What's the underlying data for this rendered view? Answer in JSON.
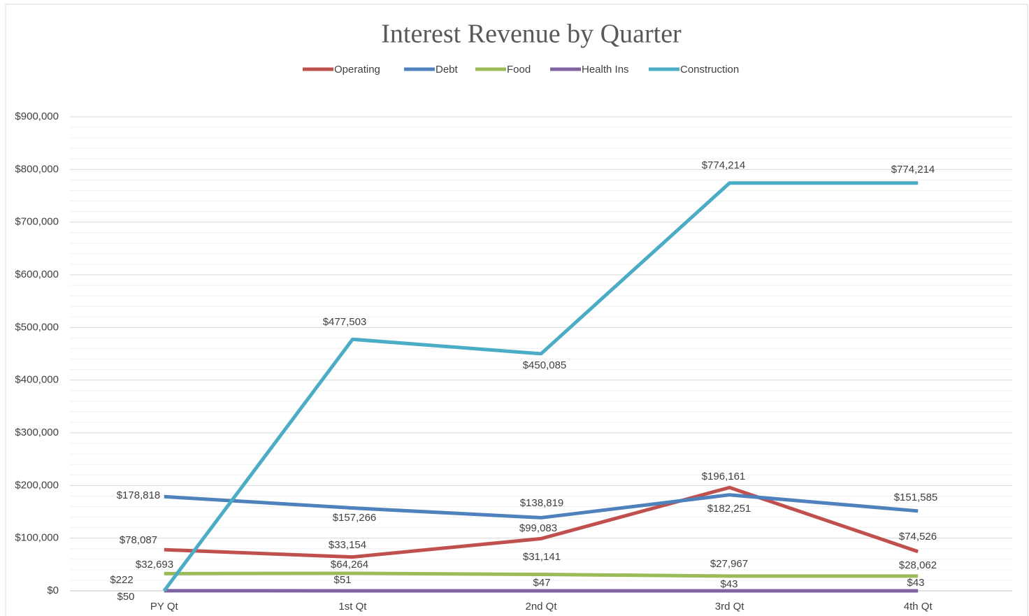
{
  "chart_data": {
    "type": "line",
    "title": "Interest Revenue by Quarter",
    "categories": [
      "PY Qt",
      "1st Qt",
      "2nd Qt",
      "3rd Qt",
      "4th Qt"
    ],
    "series": [
      {
        "name": "Operating",
        "color": "#c0504d",
        "values": [
          78087,
          64264,
          99083,
          196161,
          74526
        ],
        "value_labels": [
          "$78,087",
          "$64,264",
          "$99,083",
          "$196,161",
          "$74,526"
        ]
      },
      {
        "name": "Debt",
        "color": "#4f81bd",
        "values": [
          178818,
          157266,
          138819,
          182251,
          151585
        ],
        "value_labels": [
          "$178,818",
          "$157,266",
          "$138,819",
          "$182,251",
          "$151,585"
        ]
      },
      {
        "name": "Food",
        "color": "#9bbb59",
        "values": [
          32693,
          33154,
          31141,
          27967,
          28062
        ],
        "value_labels": [
          "$32,693",
          "$33,154",
          "$31,141",
          "$27,967",
          "$28,062"
        ]
      },
      {
        "name": "Health Ins",
        "color": "#8064a2",
        "values": [
          222,
          51,
          47,
          43,
          43
        ],
        "value_labels": [
          "$222",
          "$51",
          "$47",
          "$43",
          "$43"
        ]
      },
      {
        "name": "Construction",
        "color": "#4bacc6",
        "values": [
          50,
          477503,
          450085,
          774214,
          774214
        ],
        "value_labels": [
          "$50",
          "$477,503",
          "$450,085",
          "$774,214",
          "$774,214"
        ]
      }
    ],
    "ylim": [
      0,
      900000
    ],
    "yticks": [
      {
        "value": 0,
        "label": "$0"
      },
      {
        "value": 100000,
        "label": "$100,000"
      },
      {
        "value": 200000,
        "label": "$200,000"
      },
      {
        "value": 300000,
        "label": "$300,000"
      },
      {
        "value": 400000,
        "label": "$400,000"
      },
      {
        "value": 500000,
        "label": "$500,000"
      },
      {
        "value": 600000,
        "label": "$600,000"
      },
      {
        "value": 700000,
        "label": "$700,000"
      },
      {
        "value": 800000,
        "label": "$800,000"
      },
      {
        "value": 900000,
        "label": "$900,000"
      }
    ],
    "yminorticks": [
      20000,
      40000,
      60000,
      80000,
      120000,
      140000,
      160000,
      180000,
      220000,
      240000,
      260000,
      280000,
      320000,
      340000,
      360000,
      380000,
      420000,
      440000,
      460000,
      480000,
      520000,
      540000,
      560000,
      580000,
      620000,
      640000,
      660000,
      680000,
      720000,
      740000,
      760000,
      780000,
      820000,
      840000,
      860000,
      880000
    ],
    "grid": true,
    "legend": "top"
  }
}
